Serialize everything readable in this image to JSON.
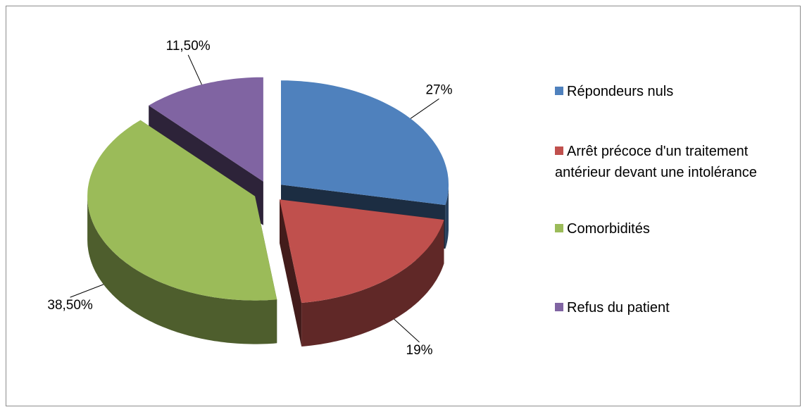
{
  "chart_data": {
    "type": "pie",
    "categories": [
      "Répondeurs nuls",
      "Arrêt précoce d'un traitement antérieur devant une intolérance",
      "Comorbidités",
      "Refus du patient"
    ],
    "values": [
      27,
      19,
      38.5,
      11.5
    ],
    "value_labels": [
      "27%",
      "19%",
      "38,50%",
      "11,50%"
    ],
    "colors": [
      "#4f81bd",
      "#c0504d",
      "#9bbb59",
      "#8064a2"
    ],
    "legend": "right"
  }
}
